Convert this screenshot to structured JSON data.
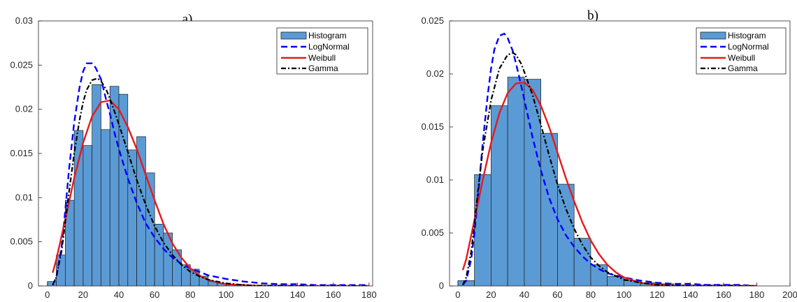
{
  "chart_data": [
    {
      "type": "bar",
      "title": "a)",
      "xlabel": "",
      "ylabel": "",
      "xlim": [
        -5,
        182
      ],
      "ylim": [
        0,
        0.03
      ],
      "xticks": [
        0,
        20,
        40,
        60,
        80,
        100,
        120,
        140,
        160,
        180
      ],
      "yticks": [
        0,
        0.005,
        0.01,
        0.015,
        0.02,
        0.025,
        0.03
      ],
      "xtick_labels": [
        "0",
        "20",
        "40",
        "60",
        "80",
        "100",
        "120",
        "140",
        "160",
        "180"
      ],
      "ytick_labels": [
        "0",
        "0.005",
        "0.01",
        "0.015",
        "0.02",
        "0.025",
        "0.03"
      ],
      "grid": false,
      "legend_position": "top-right",
      "bin_edges": [
        0,
        5,
        10,
        15,
        20,
        25,
        30,
        35,
        40,
        45,
        50,
        55,
        60,
        65,
        70,
        75,
        80,
        85,
        90,
        95,
        100,
        105,
        110,
        115,
        120,
        125,
        130,
        135,
        140,
        145,
        150,
        155,
        160,
        165,
        170,
        175,
        180
      ],
      "histogram": [
        0.0005,
        0.0035,
        0.0097,
        0.0176,
        0.0159,
        0.0228,
        0.0177,
        0.0226,
        0.0217,
        0.0154,
        0.0169,
        0.0128,
        0.007,
        0.006,
        0.0041,
        0.0024,
        0.0019,
        0.0011,
        0.0005,
        0.0003,
        0.0002,
        0.0002,
        0.0001,
        0.0001,
        0.0001,
        0.0001,
        0.0001,
        0.0,
        0.0,
        0.0,
        0.0,
        0.0001,
        0.0001,
        0.0,
        0.0,
        0.0
      ],
      "series": [
        {
          "name": "Histogram",
          "kind": "histogram",
          "color": "#5b9bd5"
        },
        {
          "name": "LogNormal",
          "kind": "curve",
          "color": "#0000ff",
          "dash": "dashed",
          "x": [
            3,
            5,
            8,
            10,
            12,
            15,
            18,
            20,
            22,
            25,
            27,
            30,
            33,
            35,
            38,
            40,
            45,
            50,
            55,
            60,
            65,
            70,
            75,
            80,
            85,
            90,
            100,
            110,
            120,
            130,
            140,
            150,
            160,
            170,
            180
          ],
          "values": [
            0.0001,
            0.001,
            0.0045,
            0.0085,
            0.013,
            0.0185,
            0.0225,
            0.0243,
            0.0252,
            0.0252,
            0.0247,
            0.0234,
            0.021,
            0.0195,
            0.017,
            0.0155,
            0.0122,
            0.0094,
            0.0071,
            0.0055,
            0.0042,
            0.0032,
            0.0025,
            0.002,
            0.0016,
            0.0012,
            0.0008,
            0.0005,
            0.0003,
            0.0002,
            0.0002,
            0.0001,
            0.0001,
            0.0001,
            0.0001
          ]
        },
        {
          "name": "Weibull",
          "kind": "curve",
          "color": "#e41a1c",
          "dash": "solid",
          "x": [
            3,
            5,
            10,
            15,
            20,
            25,
            30,
            35,
            40,
            45,
            50,
            55,
            60,
            65,
            70,
            75,
            80,
            85,
            90,
            95,
            100,
            110,
            120,
            140,
            160,
            180
          ],
          "values": [
            0.0015,
            0.003,
            0.0075,
            0.0122,
            0.0162,
            0.0192,
            0.0208,
            0.021,
            0.02,
            0.018,
            0.0155,
            0.0126,
            0.0097,
            0.007,
            0.0048,
            0.0032,
            0.002,
            0.0012,
            0.0007,
            0.0004,
            0.0002,
            0.0001,
            0.0,
            0.0,
            0.0,
            0.0
          ]
        },
        {
          "name": "Gamma",
          "kind": "curve",
          "color": "#000000",
          "dash": "dashdot",
          "x": [
            3,
            5,
            8,
            10,
            12,
            15,
            18,
            20,
            22,
            25,
            28,
            30,
            33,
            35,
            38,
            40,
            45,
            50,
            55,
            60,
            65,
            70,
            75,
            80,
            85,
            90,
            100,
            110,
            120,
            140,
            160,
            180
          ],
          "values": [
            0.0001,
            0.001,
            0.004,
            0.0072,
            0.0105,
            0.015,
            0.0188,
            0.0208,
            0.0222,
            0.0233,
            0.0235,
            0.0232,
            0.0222,
            0.0212,
            0.0195,
            0.0183,
            0.0152,
            0.012,
            0.0092,
            0.0068,
            0.0049,
            0.0035,
            0.0024,
            0.0016,
            0.0011,
            0.0007,
            0.0003,
            0.0001,
            0.0,
            0.0,
            0.0,
            0.0
          ]
        }
      ]
    },
    {
      "type": "bar",
      "title": "b)",
      "xlabel": "",
      "ylabel": "",
      "xlim": [
        -5,
        200
      ],
      "ylim": [
        0,
        0.025
      ],
      "xticks": [
        0,
        20,
        40,
        60,
        80,
        100,
        120,
        140,
        160,
        180,
        200
      ],
      "yticks": [
        0,
        0.005,
        0.01,
        0.015,
        0.02,
        0.025
      ],
      "xtick_labels": [
        "0",
        "20",
        "40",
        "60",
        "80",
        "100",
        "120",
        "140",
        "160",
        "180",
        "200"
      ],
      "ytick_labels": [
        "0",
        "0.005",
        "0.01",
        "0.015",
        "0.02",
        "0.025"
      ],
      "grid": false,
      "legend_position": "top-right",
      "bin_edges": [
        0,
        10,
        20,
        30,
        40,
        50,
        60,
        70,
        80,
        90,
        100,
        110,
        120,
        130,
        140,
        150,
        160,
        170,
        180
      ],
      "histogram": [
        0.0005,
        0.0105,
        0.017,
        0.0197,
        0.0195,
        0.0144,
        0.0096,
        0.0045,
        0.002,
        0.0009,
        0.0005,
        0.0003,
        0.0002,
        0.0001,
        0.0001,
        0.0001,
        0.0001,
        0.0
      ],
      "series": [
        {
          "name": "Histogram",
          "kind": "histogram",
          "color": "#5b9bd5"
        },
        {
          "name": "LogNormal",
          "kind": "curve",
          "color": "#0000ff",
          "dash": "dashed",
          "x": [
            3,
            5,
            8,
            10,
            12,
            15,
            18,
            20,
            22,
            25,
            28,
            30,
            33,
            35,
            38,
            40,
            45,
            50,
            55,
            60,
            65,
            70,
            75,
            80,
            85,
            90,
            100,
            110,
            120,
            130,
            140,
            150,
            160,
            170,
            180
          ],
          "values": [
            0.0001,
            0.0005,
            0.0025,
            0.005,
            0.0082,
            0.0135,
            0.018,
            0.0205,
            0.0223,
            0.0236,
            0.0238,
            0.0234,
            0.0222,
            0.021,
            0.019,
            0.0176,
            0.014,
            0.0109,
            0.0083,
            0.0063,
            0.0048,
            0.0037,
            0.0028,
            0.0021,
            0.0016,
            0.0012,
            0.0008,
            0.0005,
            0.0003,
            0.0002,
            0.0002,
            0.0001,
            0.0001,
            0.0001,
            0.0
          ]
        },
        {
          "name": "Weibull",
          "kind": "curve",
          "color": "#e41a1c",
          "dash": "solid",
          "x": [
            3,
            5,
            10,
            15,
            20,
            25,
            30,
            35,
            40,
            45,
            50,
            55,
            60,
            65,
            70,
            75,
            80,
            85,
            90,
            95,
            100,
            110,
            120,
            140,
            160,
            180
          ],
          "values": [
            0.0015,
            0.0025,
            0.0062,
            0.01,
            0.0135,
            0.0163,
            0.0182,
            0.0191,
            0.0192,
            0.0185,
            0.017,
            0.015,
            0.0126,
            0.0102,
            0.008,
            0.006,
            0.0043,
            0.003,
            0.002,
            0.0013,
            0.0008,
            0.0003,
            0.0001,
            0.0,
            0.0,
            0.0
          ]
        },
        {
          "name": "Gamma",
          "kind": "curve",
          "color": "#000000",
          "dash": "dashdot",
          "x": [
            3,
            5,
            8,
            10,
            12,
            15,
            20,
            25,
            30,
            33,
            35,
            38,
            40,
            45,
            50,
            55,
            60,
            65,
            70,
            75,
            80,
            85,
            90,
            100,
            110,
            120,
            140,
            160,
            180
          ],
          "values": [
            0.0001,
            0.0008,
            0.0032,
            0.0058,
            0.0088,
            0.0128,
            0.0175,
            0.0205,
            0.0218,
            0.022,
            0.0218,
            0.021,
            0.0202,
            0.018,
            0.0152,
            0.0123,
            0.0096,
            0.0073,
            0.0054,
            0.0039,
            0.0027,
            0.0019,
            0.0013,
            0.0006,
            0.0003,
            0.0001,
            0.0,
            0.0,
            0.0
          ]
        }
      ]
    }
  ]
}
